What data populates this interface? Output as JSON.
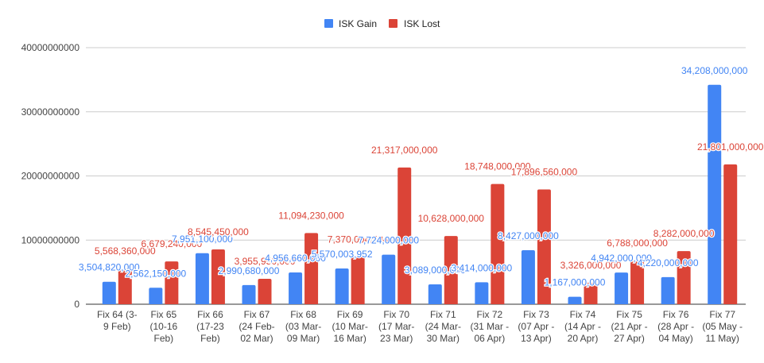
{
  "chart_data": {
    "type": "bar",
    "title": "",
    "xlabel": "",
    "ylabel": "",
    "ylim": [
      0,
      40000000000
    ],
    "yticks": [
      0,
      10000000000,
      20000000000,
      30000000000,
      40000000000
    ],
    "ytick_labels": [
      "0",
      "10000000000",
      "20000000000",
      "30000000000",
      "40000000000"
    ],
    "grid": true,
    "legend_position": "top-center",
    "categories": [
      [
        "Fix 64 (3-",
        "9 Feb)"
      ],
      [
        "Fix 65",
        "(10-16",
        "Feb)"
      ],
      [
        "Fix 66",
        "(17-23",
        "Feb)"
      ],
      [
        "Fix 67",
        "(24 Feb-",
        "02 Mar)"
      ],
      [
        "Fix 68",
        "(03 Mar-",
        "09 Mar)"
      ],
      [
        "Fix 69",
        "(10 Mar-",
        "16 Mar)"
      ],
      [
        "Fix 70",
        "(17 Mar-",
        "23 Mar)"
      ],
      [
        "Fix 71",
        "(24 Mar-",
        "30 Mar)"
      ],
      [
        "Fix 72",
        "(31 Mar -",
        "06 Apr)"
      ],
      [
        "Fix 73",
        "(07 Apr -",
        "13 Apr)"
      ],
      [
        "Fix 74",
        "(14 Apr -",
        "20 Apr)"
      ],
      [
        "Fix 75",
        "(21 Apr -",
        "27 Apr)"
      ],
      [
        "Fix 76",
        "(28 Apr -",
        "04 May)"
      ],
      [
        "Fix 77",
        "(05 May -",
        "11 May)"
      ]
    ],
    "series": [
      {
        "name": "ISK Gain",
        "color": "#4285f4",
        "values": [
          3504820000,
          2562150000,
          7951100000,
          2990680000,
          4956660000,
          5570003952,
          7724000000,
          3089000000,
          3414000000,
          8427000000,
          1167000000,
          4942000000,
          4220000000,
          34208000000
        ],
        "labels": [
          "3,504,820,000",
          "2,562,150,000",
          "7,951,100,000",
          "2,990,680,000",
          "4,956,660,000",
          "5,570,003,952",
          "7,724,000,000",
          "3,089,000,000",
          "3,414,000,000",
          "8,427,000,000",
          "1,167,000,000",
          "4,942,000,000",
          "4,220,000,000",
          "34,208,000,000"
        ]
      },
      {
        "name": "ISK Lost",
        "color": "#db4437",
        "values": [
          5568360000,
          6679240000,
          8545450000,
          3955950000,
          11094230000,
          7370004434,
          21317000000,
          10628000000,
          18748000000,
          17896560000,
          3326000000,
          6788000000,
          8282000000,
          21801000000
        ],
        "labels": [
          "5,568,360,000",
          "6,679,240,000",
          "8,545,450,000",
          "3,955,950,000",
          "11,094,230,000",
          "7,370,004,434",
          "21,317,000,000",
          "10,628,000,000",
          "18,748,000,000",
          "17,896,560,000",
          "3,326,000,000",
          "6,788,000,000",
          "8,282,000,000",
          "21,801,000,000"
        ]
      }
    ]
  }
}
